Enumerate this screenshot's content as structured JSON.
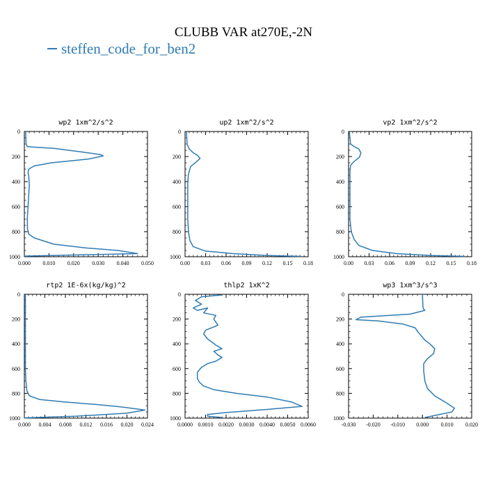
{
  "title": "CLUBB VAR at270E,-2N",
  "legend": {
    "label": "steffen_code_for_ben2",
    "color": "#2f7bb3"
  },
  "chart_data": [
    {
      "type": "line",
      "title": "wp2   1xm^2/s^2",
      "xlim": [
        0,
        0.05
      ],
      "xticks": [
        "0.000",
        "0.010",
        "0.020",
        "0.030",
        "0.040",
        "0.050"
      ],
      "ylim": [
        1000,
        0
      ],
      "yticks": [
        "0",
        "200",
        "400",
        "600",
        "800",
        "1000"
      ],
      "series": [
        {
          "x": [
            0.0005,
            0.0007,
            0.0012,
            0.004,
            0.012,
            0.024,
            0.031,
            0.032,
            0.026,
            0.011,
            0.004,
            0.0018,
            0.0015,
            0.0018,
            0.002,
            0.0018,
            0.0015,
            0.0012,
            0.0013,
            0.0018,
            0.004,
            0.012,
            0.025,
            0.038,
            0.046,
            0.0
          ],
          "y": [
            0,
            100,
            120,
            125,
            135,
            165,
            185,
            195,
            220,
            250,
            275,
            300,
            330,
            360,
            430,
            500,
            600,
            700,
            780,
            820,
            850,
            900,
            930,
            950,
            975,
            995
          ]
        }
      ]
    },
    {
      "type": "line",
      "title": "up2   1xm^2/s^2",
      "xlim": [
        0,
        0.18
      ],
      "xticks": [
        "0.00",
        "0.03",
        "0.06",
        "0.09",
        "0.12",
        "0.15",
        "0.18"
      ],
      "ylim": [
        1000,
        0
      ],
      "yticks": [
        "0",
        "200",
        "400",
        "600",
        "800",
        "1000"
      ],
      "series": [
        {
          "x": [
            0.002,
            0.003,
            0.006,
            0.012,
            0.018,
            0.022,
            0.016,
            0.008,
            0.005,
            0.004,
            0.004,
            0.004,
            0.004,
            0.005,
            0.007,
            0.012,
            0.03,
            0.07,
            0.12,
            0.17
          ],
          "y": [
            0,
            100,
            140,
            170,
            190,
            215,
            245,
            280,
            340,
            400,
            500,
            600,
            700,
            800,
            870,
            920,
            955,
            975,
            990,
            997
          ]
        }
      ]
    },
    {
      "type": "line",
      "title": "vp2   1xm^2/s^2",
      "xlim": [
        0,
        0.18
      ],
      "xticks": [
        "0.00",
        "0.03",
        "0.06",
        "0.09",
        "0.12",
        "0.15",
        "0.18"
      ],
      "ylim": [
        1000,
        0
      ],
      "yticks": [
        "0",
        "200",
        "400",
        "600",
        "800",
        "1000"
      ],
      "series": [
        {
          "x": [
            0.001,
            0.003,
            0.008,
            0.015,
            0.018,
            0.016,
            0.008,
            0.003,
            0.002,
            0.002,
            0.002,
            0.002,
            0.002,
            0.004,
            0.008,
            0.015,
            0.035,
            0.07,
            0.12,
            0.17
          ],
          "y": [
            0,
            100,
            120,
            140,
            170,
            205,
            240,
            270,
            320,
            400,
            500,
            600,
            700,
            800,
            860,
            910,
            950,
            975,
            990,
            997
          ]
        }
      ]
    },
    {
      "type": "line",
      "title": "rtp2   1E-6x(kg/kg)^2",
      "xlim": [
        0,
        0.024
      ],
      "xticks": [
        "0.000",
        "0.004",
        "0.008",
        "0.012",
        "0.016",
        "0.020",
        "0.024"
      ],
      "ylim": [
        1000,
        0
      ],
      "yticks": [
        "0",
        "200",
        "400",
        "600",
        "800",
        "1000"
      ],
      "series": [
        {
          "x": [
            0.0002,
            0.0002,
            0.0002,
            0.0002,
            0.0003,
            0.0005,
            0.001,
            0.003,
            0.008,
            0.014,
            0.019,
            0.0235,
            0.02,
            0.01,
            0.0
          ],
          "y": [
            0,
            200,
            400,
            600,
            700,
            780,
            820,
            850,
            870,
            890,
            910,
            935,
            960,
            985,
            998
          ]
        }
      ]
    },
    {
      "type": "line",
      "title": "thlp2   1xK^2",
      "xlim": [
        0,
        0.006
      ],
      "xticks": [
        "0.0000",
        "0.0010",
        "0.0020",
        "0.0030",
        "0.0040",
        "0.0050",
        "0.0060"
      ],
      "ylim": [
        1000,
        0
      ],
      "yticks": [
        "0",
        "200",
        "400",
        "600",
        "800",
        "1000"
      ],
      "series": [
        {
          "x": [
            0.0018,
            0.0008,
            0.0005,
            0.0008,
            0.0004,
            0.0006,
            0.0011,
            0.0009,
            0.0015,
            0.0014,
            0.0016,
            0.0013,
            0.001,
            0.0009,
            0.0011,
            0.0015,
            0.0018,
            0.0014,
            0.0016,
            0.0018,
            0.0015,
            0.0011,
            0.0008,
            0.0006,
            0.0006,
            0.0007,
            0.0009,
            0.0014,
            0.0025,
            0.004,
            0.0052,
            0.0057,
            0.004,
            0.002,
            0.0011,
            0.0011,
            0.0018
          ],
          "y": [
            5,
            20,
            50,
            80,
            110,
            130,
            110,
            150,
            170,
            200,
            250,
            270,
            290,
            320,
            360,
            410,
            440,
            460,
            490,
            510,
            540,
            560,
            590,
            630,
            680,
            710,
            740,
            770,
            800,
            830,
            870,
            905,
            930,
            955,
            970,
            985,
            995
          ]
        }
      ]
    },
    {
      "type": "line",
      "title": "wp3   1xm^3/s^3",
      "xlim": [
        -0.03,
        0.02
      ],
      "xticks": [
        "-0.030",
        "-0.020",
        "-0.010",
        "0.000",
        "0.010",
        "0.020"
      ],
      "ylim": [
        1000,
        0
      ],
      "yticks": [
        "0",
        "200",
        "400",
        "600",
        "800",
        "1000"
      ],
      "series": [
        {
          "x": [
            0.0,
            0.0001,
            0.0002,
            0.0005,
            0.001,
            -0.005,
            -0.025,
            -0.027,
            -0.018,
            -0.008,
            -0.003,
            -0.002,
            0.001,
            0.003,
            0.005,
            0.0045,
            0.002,
            0.0005,
            0.0005,
            0.001,
            0.002,
            0.005,
            0.01,
            0.013,
            0.012,
            0.006,
            0.001
          ],
          "y": [
            0,
            60,
            100,
            120,
            130,
            160,
            185,
            205,
            215,
            240,
            270,
            300,
            370,
            400,
            440,
            480,
            520,
            560,
            620,
            700,
            760,
            820,
            880,
            920,
            950,
            975,
            995
          ]
        }
      ]
    }
  ]
}
